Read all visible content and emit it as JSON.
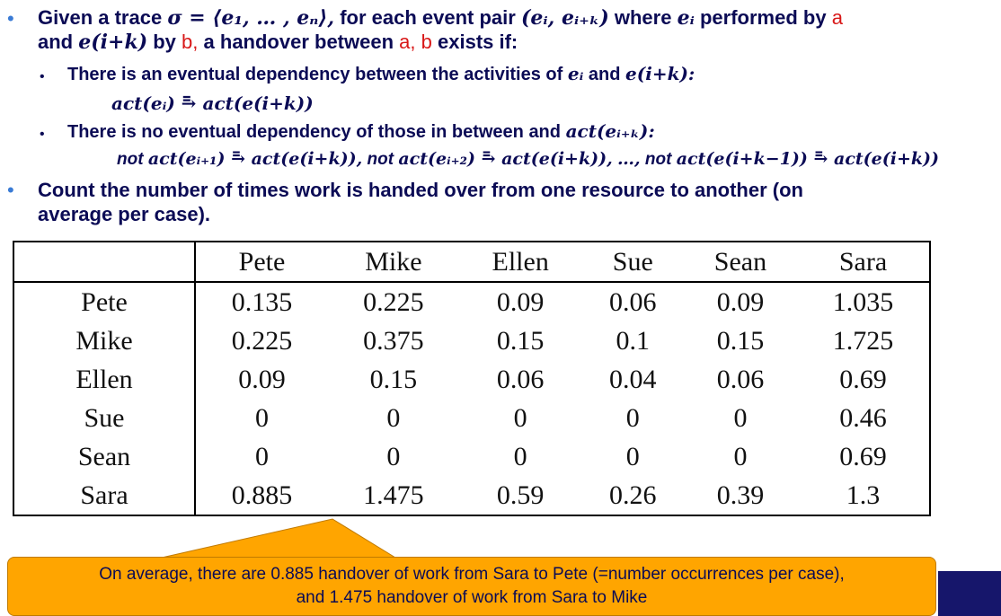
{
  "bullets": {
    "b1_prefix": "Given a trace",
    "b1_trace": "σ = ⟨e₁, … , eₙ⟩,",
    "b1_mid": "for each event pair",
    "b1_pair": "(eᵢ, eᵢ₊ₖ)",
    "b1_where": "where",
    "b1_ei": "eᵢ",
    "b1_performed": "performed by",
    "b1_a": "a",
    "b2_and": "and",
    "b2_eik": "e(i+k)",
    "b2_by": "by",
    "b2_b": "b,",
    "b2_handover": "a handover between",
    "b2_ab": "a, b",
    "b2_exists": "exists if:",
    "s1_text": "There is an eventual dependency between the activities of",
    "s1_ei": "eᵢ",
    "s1_and": "and",
    "s1_eik": "e(i+k):",
    "s1_formula": "act(eᵢ) ⥱ act(e(i+k))",
    "s2_text": "There is no eventual dependency of those in between and",
    "s2_formula_end": "act(eᵢ₊ₖ):",
    "s2_not": "not",
    "s2_f1": "act(eᵢ₊₁) ⥱ act(e(i+k)),",
    "s2_f2": "act(eᵢ₊₂) ⥱ act(e(i+k)),",
    "s2_dots": "…,",
    "s2_f3": "act(e(i+k−1)) ⥱ act(e(i+k))",
    "b3_line1": "Count the number of times work is handed over from one resource to another (on",
    "b3_line2": "average per case)."
  },
  "table": {
    "columns": [
      "Pete",
      "Mike",
      "Ellen",
      "Sue",
      "Sean",
      "Sara"
    ],
    "rows": [
      {
        "name": "Pete",
        "values": [
          "0.135",
          "0.225",
          "0.09",
          "0.06",
          "0.09",
          "1.035"
        ]
      },
      {
        "name": "Mike",
        "values": [
          "0.225",
          "0.375",
          "0.15",
          "0.1",
          "0.15",
          "1.725"
        ]
      },
      {
        "name": "Ellen",
        "values": [
          "0.09",
          "0.15",
          "0.06",
          "0.04",
          "0.06",
          "0.69"
        ]
      },
      {
        "name": "Sue",
        "values": [
          "0",
          "0",
          "0",
          "0",
          "0",
          "0.46"
        ]
      },
      {
        "name": "Sean",
        "values": [
          "0",
          "0",
          "0",
          "0",
          "0",
          "0.69"
        ]
      },
      {
        "name": "Sara",
        "values": [
          "0.885",
          "1.475",
          "0.59",
          "0.26",
          "0.39",
          "1.3"
        ]
      }
    ]
  },
  "callout": {
    "line1": "On average, there are 0.885 handover of work from Sara to Pete (=number occurrences per case),",
    "line2": "and 1.475 handover of work from Sara to Mike"
  },
  "colors": {
    "text": "#0b0b55",
    "bullet": "#3a7bd5",
    "accent_red": "#d81818",
    "callout_bg": "#ffa500",
    "navy_block": "#16166b"
  }
}
